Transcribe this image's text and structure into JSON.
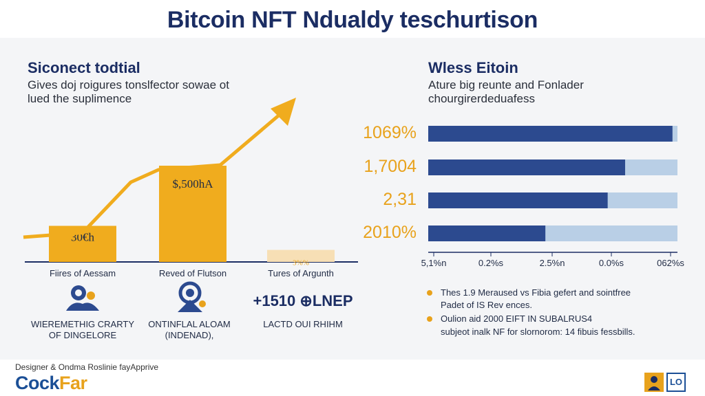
{
  "title": "Bitcoin NFT Ndualdy teschurtison",
  "left": {
    "heading": "Siconect todtial",
    "subtitle_line1": "Gives doj roigures tonslfector sowae ot",
    "subtitle_line2": "lued the suplimence"
  },
  "right": {
    "heading": "Wless Eitoin",
    "subtitle_line1": "Ature big reunte and Fonlader",
    "subtitle_line2": "chourgirerdeduafess"
  },
  "chart_data": [
    {
      "type": "bar",
      "title": "Siconect todtial",
      "categories": [
        "Fiires of Aessam",
        "Reved of Flutson",
        "Tures of Argunth"
      ],
      "values": [
        30,
        80,
        10
      ],
      "data_labels": [
        "30€h",
        "$,500hA",
        "3%%"
      ],
      "trend_line": true,
      "colors": {
        "bar": "#f0ac1e",
        "faded_bar": "#f7dfb5",
        "arrow": "#f0ac1e"
      }
    },
    {
      "type": "bar",
      "orientation": "horizontal",
      "title": "Wless Eitoin",
      "categories": [
        "1069%",
        "1,7004",
        "2,31",
        "2010%"
      ],
      "values": [
        0.98,
        0.79,
        0.72,
        0.47
      ],
      "xticks": [
        "5,1%n",
        "0.2%s",
        "2.5%n",
        "0.0%s",
        "062%s"
      ],
      "colors": {
        "bar": "#2c4a8f",
        "track": "#b9cfe6"
      }
    }
  ],
  "captions": [
    {
      "line1": "WIEREMETHIG CRARTY",
      "line2": "OF DINGELORE"
    },
    {
      "line1": "ONTINFLAL ALOAM",
      "line2": "(INDENAD),"
    },
    {
      "line1": "+1510 ⊕LNEP",
      "line2": "LACTD OUI RHIHM"
    }
  ],
  "notes": [
    {
      "line1": "Thes 1.9 Meraused vs Fibia gefert and sointfree",
      "line2": "Padet of IS Rev ences."
    },
    {
      "line1": "Oulion aid 2000 EIFT IN SUBALRUS4",
      "line2": "subjeot inalk NF for slornorom: 14 fibuis fessbills."
    }
  ],
  "footer": {
    "credit": "Designer & Ondma Roslinie fayApprive",
    "logo_part1": "Cock",
    "logo_part2": "Far",
    "badge_text": "LO"
  },
  "colors": {
    "navy": "#1b2d63",
    "accent": "#e8a21c",
    "blue": "#2c4a8f"
  }
}
